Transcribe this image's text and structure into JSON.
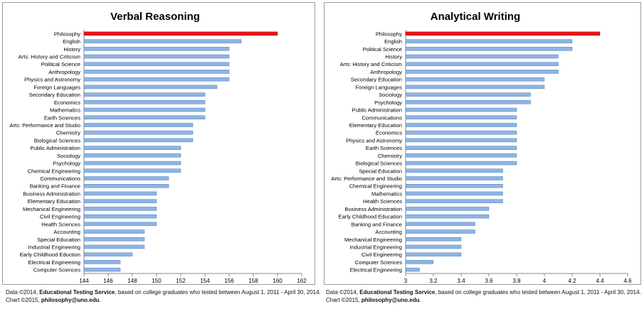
{
  "colors": {
    "highlight": "#e8141c",
    "bar": "#8fb4e3",
    "bar_edge": "#4f81bd",
    "grid": "#bcbcbc"
  },
  "footers": [
    {
      "line1_prefix": "Data ©2014, ",
      "line1_source": "Educational Testing Service",
      "line1_suffix": ", based on college graduates who tested between August 1, 2011 - April 30, 2014.",
      "line2_prefix": "Chart ©2015, ",
      "line2_contact": "philosophy@uno.edu",
      "line2_suffix": "."
    },
    {
      "line1_prefix": "Data ©2014, ",
      "line1_source": "Educational Testing Service",
      "line1_suffix": ", based on college graduates who tested between August 1, 2011 - April 30, 2014.",
      "line2_prefix": "Chart ©2015, ",
      "line2_contact": "philosophy@uno.edu",
      "line2_suffix": "."
    }
  ],
  "chart_data": [
    {
      "type": "bar",
      "orientation": "horizontal",
      "title": "Verbal Reasoning",
      "xlim": [
        144,
        162
      ],
      "xticks": [
        "144",
        "146",
        "148",
        "150",
        "152",
        "154",
        "156",
        "158",
        "160",
        "162"
      ],
      "highlight": "Philosophy",
      "categories": [
        "Philosophy",
        "English",
        "History",
        "Arts: History and Criticism",
        "Political Science",
        "Anthropology",
        "Physics and Astronomy",
        "Foreign Languages",
        "Secondary Education",
        "Economics",
        "Mathematics",
        "Earth Sciences",
        "Arts: Performance and Studio",
        "Chemistry",
        "Biological Sciences",
        "Public Administration",
        "Sociology",
        "Psychology",
        "Chemical Engineering",
        "Communications",
        "Banking and Finance",
        "Business Administration",
        "Elementary Education",
        "Mechanical Engineering",
        "Civil Engineering",
        "Health Sciences",
        "Accounting",
        "Special Education",
        "Industrial Engineering",
        "Early Childhood Eduction",
        "Electrical Engineering",
        "Computer Sciences"
      ],
      "values": [
        160,
        157,
        156,
        156,
        156,
        156,
        156,
        155,
        154,
        154,
        154,
        154,
        153,
        153,
        153,
        152,
        152,
        152,
        152,
        151,
        151,
        150,
        150,
        150,
        150,
        150,
        149,
        149,
        149,
        148,
        147,
        147
      ]
    },
    {
      "type": "bar",
      "orientation": "horizontal",
      "title": "Analytical Writing",
      "xlim": [
        3,
        4.6
      ],
      "xticks": [
        "3",
        "3.2",
        "3.4",
        "3.6",
        "3.8",
        "4",
        "4.2",
        "4.4",
        "4.6"
      ],
      "highlight": "Philosophy",
      "categories": [
        "Philosophy",
        "English",
        "Political Science",
        "History",
        "Arts: History and Criticism",
        "Anthropology",
        "Secondary Education",
        "Foreign Languages",
        "Sociology",
        "Psychology",
        "Public Administration",
        "Communications",
        "Elementary Education",
        "Economics",
        "Physics and Astronomy",
        "Earth Sciences",
        "Chemistry",
        "Biological Sciences",
        "Special Education",
        "Arts: Performance and Studio",
        "Chemical Engineering",
        "Mathematics",
        "Health Sciences",
        "Business Administration",
        "Early Childhood Education",
        "Banking and Finance",
        "Accounting",
        "Mechanical Engineering",
        "Industrial Engineering",
        "Civil Engineering",
        "Computer Sciences",
        "Electrical Engineering"
      ],
      "values": [
        4.4,
        4.2,
        4.2,
        4.1,
        4.1,
        4.1,
        4.0,
        4.0,
        3.9,
        3.9,
        3.8,
        3.8,
        3.8,
        3.8,
        3.8,
        3.8,
        3.8,
        3.8,
        3.7,
        3.7,
        3.7,
        3.7,
        3.7,
        3.6,
        3.6,
        3.5,
        3.5,
        3.4,
        3.4,
        3.4,
        3.2,
        3.1
      ]
    }
  ]
}
